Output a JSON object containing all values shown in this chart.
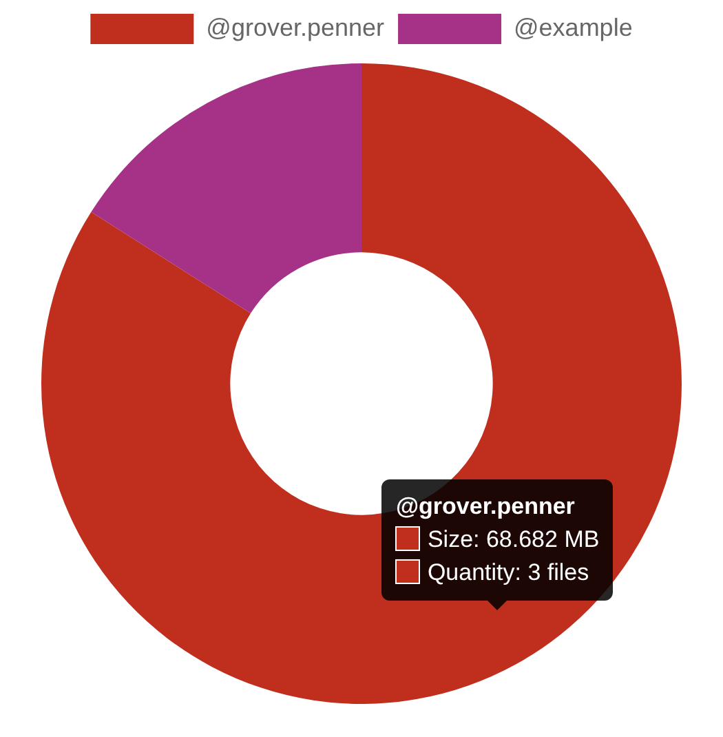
{
  "chart_data": {
    "type": "donut",
    "categories": [
      "@grover.penner",
      "@example"
    ],
    "values": [
      84,
      16
    ],
    "colors": [
      "#c02e1e",
      "#a53286"
    ],
    "legend": "top",
    "annotations": [
      "@grover.penner",
      "Size: 68.682 MB",
      "Quantity: 3 files"
    ]
  }
}
